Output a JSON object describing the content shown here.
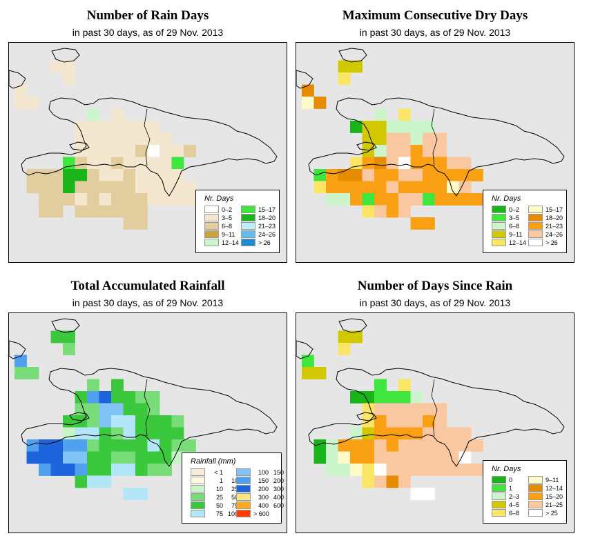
{
  "panels": [
    {
      "id": "rain-days",
      "title": "Number of Rain Days",
      "subtitle": "in past 30 days, as of  29 Nov. 2013",
      "legend": {
        "title": "Nr. Days",
        "items": [
          {
            "label": "0–2",
            "color": "#ffffff"
          },
          {
            "label": "3–5",
            "color": "#f3e7cf"
          },
          {
            "label": "6–8",
            "color": "#e2cd9e"
          },
          {
            "label": "9–11",
            "color": "#c9a43f"
          },
          {
            "label": "12–14",
            "color": "#ccf5cc"
          },
          {
            "label": "15–17",
            "color": "#3ee63e"
          },
          {
            "label": "18–20",
            "color": "#19b419"
          },
          {
            "label": "21–23",
            "color": "#bdeefa"
          },
          {
            "label": "24–26",
            "color": "#5fbdf0"
          },
          {
            "label": "> 26",
            "color": "#1e8cd2"
          }
        ]
      }
    },
    {
      "id": "dry-days",
      "title": "Maximum Consecutive Dry Days",
      "subtitle": "in past 30 days, as of  29 Nov. 2013",
      "legend": {
        "title": "Nr. Days",
        "items": [
          {
            "label": "0–2",
            "color": "#19b419"
          },
          {
            "label": "3–5",
            "color": "#3ee63e"
          },
          {
            "label": "6–8",
            "color": "#ccf5cc"
          },
          {
            "label": "9–11",
            "color": "#d2c800"
          },
          {
            "label": "12–14",
            "color": "#fae664"
          },
          {
            "label": "15–17",
            "color": "#fffac8"
          },
          {
            "label": "18–20",
            "color": "#e68c00"
          },
          {
            "label": "21–23",
            "color": "#faa014"
          },
          {
            "label": "24–26",
            "color": "#fac8a0"
          },
          {
            "label": "> 26",
            "color": "#ffffff"
          }
        ]
      }
    },
    {
      "id": "rainfall",
      "title": "Total Accumulated Rainfall",
      "subtitle": "in past 30 days, as of  29 Nov. 2013",
      "legend": {
        "title": "Rainfall (mm)",
        "items": [
          {
            "lo": "< 1",
            "hi": "",
            "color": "#f5ebd7"
          },
          {
            "lo": "1",
            "hi": "10",
            "color": "#fff8dc"
          },
          {
            "lo": "10",
            "hi": "25",
            "color": "#c8f5c8"
          },
          {
            "lo": "25",
            "hi": "50",
            "color": "#78dc78"
          },
          {
            "lo": "50",
            "hi": "75",
            "color": "#3cc83c"
          },
          {
            "lo": "75",
            "hi": "100",
            "color": "#b4e6fa"
          },
          {
            "lo": "100",
            "hi": "150",
            "color": "#82c3f5"
          },
          {
            "lo": "150",
            "hi": "200",
            "color": "#50a0f0"
          },
          {
            "lo": "200",
            "hi": "300",
            "color": "#1e64dc"
          },
          {
            "lo": "300",
            "hi": "400",
            "color": "#fae682"
          },
          {
            "lo": "400",
            "hi": "600",
            "color": "#ffaa1e"
          },
          {
            "lo": "> 600",
            "hi": "",
            "color": "#ff3c00"
          }
        ]
      }
    },
    {
      "id": "since-rain",
      "title": "Number of Days Since Rain",
      "subtitle": "in past 30 days, as of  29 Nov. 2013",
      "legend": {
        "title": "Nr. Days",
        "items": [
          {
            "label": "0",
            "color": "#19b419"
          },
          {
            "label": "1",
            "color": "#3ee63e"
          },
          {
            "label": "2–3",
            "color": "#ccf5cc"
          },
          {
            "label": "4–5",
            "color": "#d2c800"
          },
          {
            "label": "6–8",
            "color": "#fae664"
          },
          {
            "label": "9–11",
            "color": "#fffac8"
          },
          {
            "label": "12–14",
            "color": "#e68c00"
          },
          {
            "label": "15–20",
            "color": "#faa014"
          },
          {
            "label": "21–25",
            "color": "#fac8a0"
          },
          {
            "label": "> 25",
            "color": "#ffffff"
          }
        ]
      }
    }
  ],
  "grids": {
    "rain-days": [
      "...................",
      "...11..............",
      "....1..............",
      "1..................",
      "11.................",
      "......4.1..........",
      ".....1111111.......",
      ".....11111111......",
      ".....1111120112....",
      "....5211211115.....",
      ".2226621121111.....",
      ".22262222211111....",
      "..2221212221111....",
      "..22.222222........",
      ".........22........",
      "..................."
    ],
    "dry-days": [
      "...................",
      "...33..............",
      "...4...............",
      "6..................",
      "56.................",
      "......2.4..........",
      "....0332222........",
      ".....3388288.......",
      ".....3288788.......",
      "....4768977788.....",
      ".17668778877777....",
      ".4777778777758.....",
      "..2271778817777....",
      ".....4878..........",
      ".........77........",
      "..................."
    ],
    "rainfall": [
      "...................",
      "...44..............",
      "....3..............",
      "7..................",
      "33.................",
      "......3.4..........",
      ".....4784433.......",
      ".....3366443.......",
      "....4436554443.....",
      "....2554354444.....",
      ".78877344445433....",
      ".8886644334442.....",
      "..78874455433......",
      ".....455..........",
      ".........55........",
      "..................."
    ],
    "since-rain": [
      "...................",
      "...33..............",
      "...4...............",
      "1..................",
      "33.................",
      "......1.4..........",
      "....001112.........",
      ".....4888888.......",
      ".....4788878.......",
      "....2377778888.....",
      ".02777878888888....",
      ".0257788888889.....",
      "..2254988888888....",
      ".....4868..........",
      ".........99........",
      "..................."
    ]
  }
}
